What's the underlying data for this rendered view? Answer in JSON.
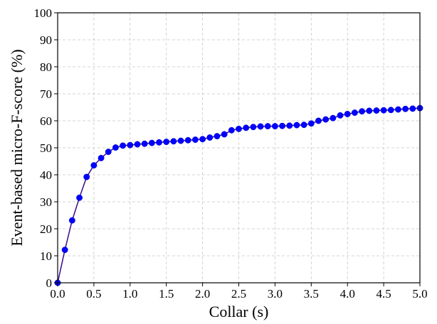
{
  "chart_data": {
    "type": "line",
    "title": "",
    "xlabel": "Collar (s)",
    "ylabel": "Event-based micro-F-score (%)",
    "xlim": [
      0.0,
      5.0
    ],
    "ylim": [
      0,
      100
    ],
    "xticks": [
      0.0,
      0.5,
      1.0,
      1.5,
      2.0,
      2.5,
      3.0,
      3.5,
      4.0,
      4.5,
      5.0
    ],
    "xtick_labels": [
      "0.0",
      "0.5",
      "1.0",
      "1.5",
      "2.0",
      "2.5",
      "3.0",
      "3.5",
      "4.0",
      "4.5",
      "5.0"
    ],
    "yticks": [
      0,
      10,
      20,
      30,
      40,
      50,
      60,
      70,
      80,
      90,
      100
    ],
    "ytick_labels": [
      "0",
      "10",
      "20",
      "30",
      "40",
      "50",
      "60",
      "70",
      "80",
      "90",
      "100"
    ],
    "grid": true,
    "legend": "none",
    "series": [
      {
        "color": "#0000ff",
        "line_color": "#3b0a8c",
        "marker": "circle",
        "x": [
          0.0,
          0.1,
          0.2,
          0.3,
          0.4,
          0.5,
          0.6,
          0.7,
          0.8,
          0.9,
          1.0,
          1.1,
          1.2,
          1.3,
          1.4,
          1.5,
          1.6,
          1.7,
          1.8,
          1.9,
          2.0,
          2.1,
          2.2,
          2.3,
          2.4,
          2.5,
          2.6,
          2.7,
          2.8,
          2.9,
          3.0,
          3.1,
          3.2,
          3.3,
          3.4,
          3.5,
          3.6,
          3.7,
          3.8,
          3.9,
          4.0,
          4.1,
          4.2,
          4.3,
          4.4,
          4.5,
          4.6,
          4.7,
          4.8,
          4.9,
          5.0
        ],
        "y": [
          0.0,
          12.2,
          23.1,
          31.5,
          39.2,
          43.5,
          46.2,
          48.5,
          50.1,
          50.8,
          51.0,
          51.3,
          51.5,
          51.8,
          52.0,
          52.2,
          52.4,
          52.6,
          52.8,
          53.0,
          53.2,
          53.8,
          54.3,
          55.0,
          56.5,
          57.0,
          57.4,
          57.7,
          57.9,
          58.0,
          58.0,
          58.1,
          58.2,
          58.4,
          58.5,
          59.0,
          60.0,
          60.5,
          61.0,
          62.0,
          62.5,
          63.0,
          63.5,
          63.7,
          63.8,
          63.9,
          64.0,
          64.2,
          64.4,
          64.5,
          64.7
        ]
      }
    ]
  }
}
